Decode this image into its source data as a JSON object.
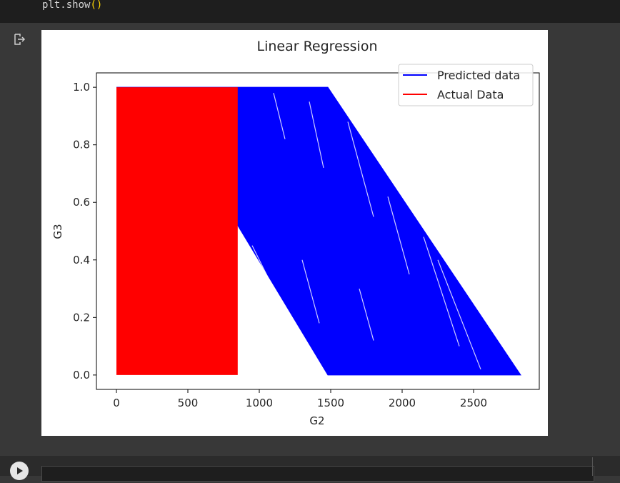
{
  "code": {
    "prefix": "plt.show",
    "paren": "()"
  },
  "output": {
    "icon": "output-arrow-icon"
  },
  "chart_data": {
    "type": "line",
    "title": "Linear Regression",
    "xlabel": "G2",
    "ylabel": "G3",
    "xlim": [
      -140,
      2960
    ],
    "ylim": [
      -0.05,
      1.05
    ],
    "xticks": [
      0,
      500,
      1000,
      1500,
      2000,
      2500
    ],
    "xtick_labels": [
      "0",
      "500",
      "1000",
      "1500",
      "2000",
      "2500"
    ],
    "yticks": [
      0.0,
      0.2,
      0.4,
      0.6,
      0.8,
      1.0
    ],
    "ytick_labels": [
      "0.0",
      "0.2",
      "0.4",
      "0.6",
      "0.8",
      "1.0"
    ],
    "grid": false,
    "legend_position": "upper right",
    "series": [
      {
        "name": "Predicted data",
        "color": "#0000ff",
        "region_x_top": [
          0,
          1480
        ],
        "region_x_bottom": [
          1480,
          2830
        ],
        "y_range": [
          0.0,
          1.0
        ]
      },
      {
        "name": "Actual Data",
        "color": "#ff0000",
        "x_range": [
          0,
          849
        ],
        "y_range": [
          0.0,
          1.0
        ]
      }
    ]
  }
}
